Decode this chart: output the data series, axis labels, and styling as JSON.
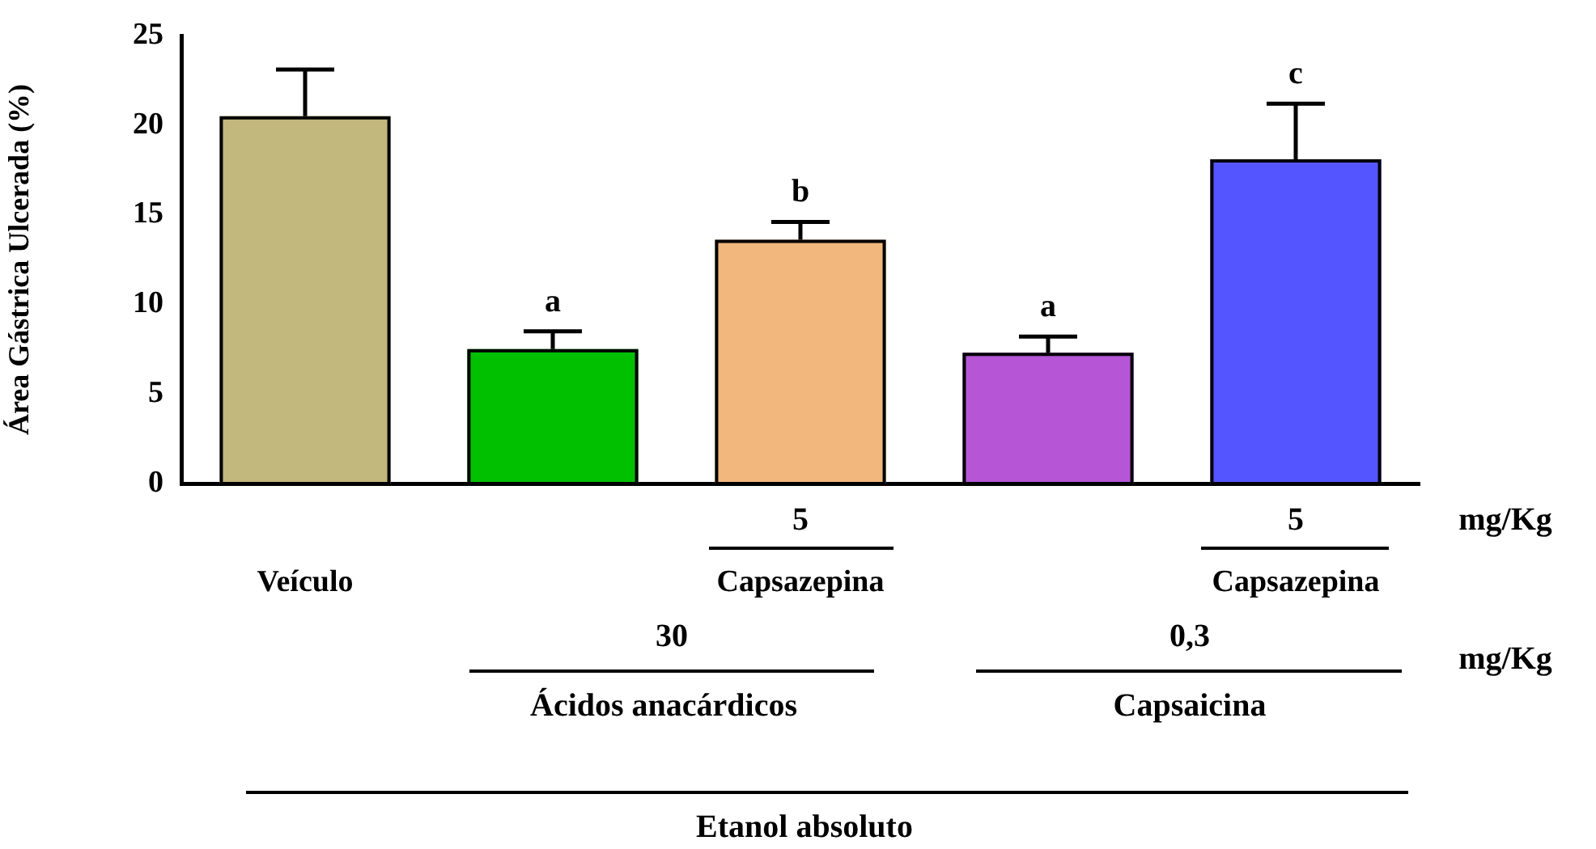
{
  "chart_data": {
    "type": "bar",
    "ylabel": "Área Gástrica Ulcerada (%)",
    "categories": [
      "Veículo",
      null,
      "Capsazepina",
      null,
      "Capsazepina"
    ],
    "values": [
      20.5,
      7.5,
      13.6,
      7.3,
      18.1
    ],
    "colors": [
      "#c2b77c",
      "#00c000",
      "#f2b77c",
      "#b656d6",
      "#5555ff"
    ],
    "errors": [
      [
        20.5,
        23.1
      ],
      [
        7.5,
        8.5
      ],
      [
        13.6,
        14.6
      ],
      [
        7.3,
        8.2
      ],
      [
        18.1,
        21.2
      ]
    ],
    "ylim": [
      0,
      25
    ],
    "yticks": [
      0,
      5,
      10,
      15,
      20,
      25
    ],
    "grid": false,
    "legend": false,
    "annotations": [
      "a",
      "b",
      "a",
      "c",
      "5",
      "5",
      "mg/Kg",
      "30",
      "Ácidos anacárdicos",
      "0,3",
      "Capsaicina",
      "mg/Kg",
      "Etanol absoluto"
    ]
  }
}
